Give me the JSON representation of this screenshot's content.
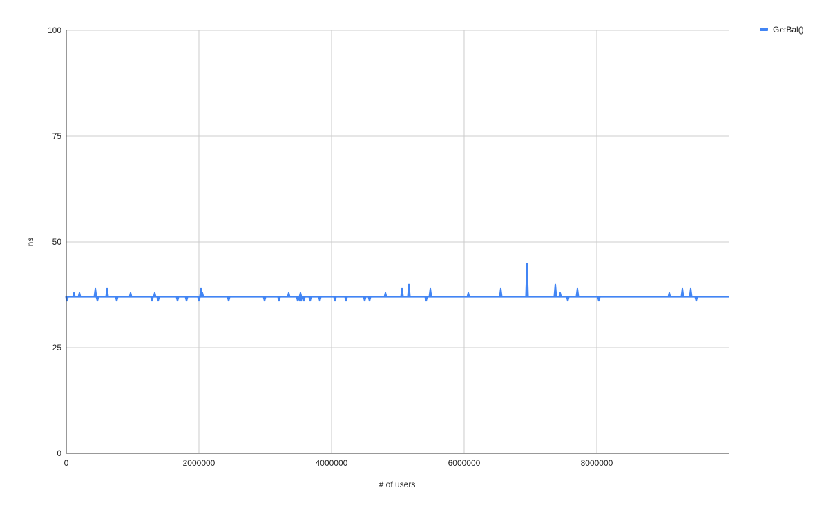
{
  "chart_data": {
    "type": "line",
    "title": "",
    "xlabel": "# of users",
    "ylabel": "ns",
    "xlim": [
      0,
      9990000
    ],
    "ylim": [
      0,
      100
    ],
    "xticks": [
      0,
      2000000,
      4000000,
      6000000,
      8000000
    ],
    "xtick_labels": [
      "0",
      "2000000",
      "4000000",
      "6000000",
      "8000000"
    ],
    "yticks": [
      0,
      25,
      50,
      75,
      100
    ],
    "ytick_labels": [
      "0",
      "25",
      "50",
      "75",
      "100"
    ],
    "grid": true,
    "legend": "top-right",
    "series": [
      {
        "name": "GetBal()",
        "color": "#4285f4",
        "baseline": 37,
        "deviations": [
          [
            10000,
            36
          ],
          [
            115000,
            38
          ],
          [
            198000,
            38
          ],
          [
            438000,
            39
          ],
          [
            469000,
            36
          ],
          [
            615000,
            39
          ],
          [
            760000,
            36
          ],
          [
            969000,
            38
          ],
          [
            1292000,
            36
          ],
          [
            1333000,
            38
          ],
          [
            1385000,
            36
          ],
          [
            1677000,
            36
          ],
          [
            1813000,
            36
          ],
          [
            2000000,
            36
          ],
          [
            2031000,
            39
          ],
          [
            2052000,
            38
          ],
          [
            2448000,
            36
          ],
          [
            2990000,
            36
          ],
          [
            3208000,
            36
          ],
          [
            3354000,
            38
          ],
          [
            3490000,
            36
          ],
          [
            3521000,
            36
          ],
          [
            3531000,
            38
          ],
          [
            3542000,
            36
          ],
          [
            3583000,
            36
          ],
          [
            3677000,
            36
          ],
          [
            3823000,
            36
          ],
          [
            4052000,
            36
          ],
          [
            4219000,
            36
          ],
          [
            4500000,
            36
          ],
          [
            4573000,
            36
          ],
          [
            4813000,
            38
          ],
          [
            5063000,
            39
          ],
          [
            5167000,
            40
          ],
          [
            5427000,
            36
          ],
          [
            5490000,
            39
          ],
          [
            6063000,
            38
          ],
          [
            6552000,
            39
          ],
          [
            6948000,
            45
          ],
          [
            7375000,
            40
          ],
          [
            7448000,
            38
          ],
          [
            7563000,
            36
          ],
          [
            7708000,
            39
          ],
          [
            8031000,
            36
          ],
          [
            9094000,
            38
          ],
          [
            9292000,
            39
          ],
          [
            9417000,
            39
          ],
          [
            9500000,
            36
          ]
        ]
      }
    ]
  }
}
